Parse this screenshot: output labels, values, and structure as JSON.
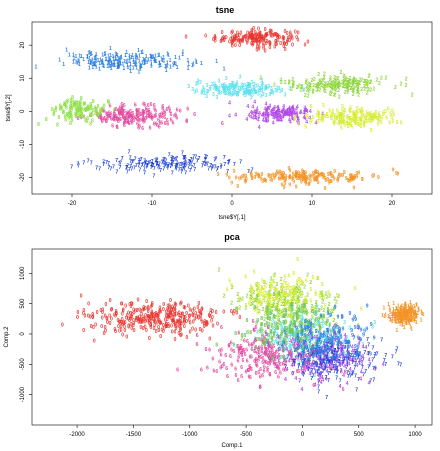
{
  "chart_data": [
    {
      "type": "scatter",
      "title": "tsne",
      "xlabel": "tsne$Y[,1]",
      "ylabel": "tsne$Y[,2]",
      "xlim": [
        -25,
        25
      ],
      "ylim": [
        -25,
        27
      ],
      "xticks": [
        -20,
        -10,
        0,
        10,
        20
      ],
      "yticks": [
        -20,
        -10,
        0,
        10,
        20
      ],
      "xtick_labels": [
        "-20",
        "-10",
        "0",
        "10",
        "20"
      ],
      "ytick_labels": [
        "-20",
        "-10",
        "0",
        "10",
        "20"
      ],
      "marker": "digit glyph of the class",
      "grid": false,
      "series": [
        {
          "glyph": "0",
          "color": "#e8342e",
          "center": [
            3,
            22
          ],
          "spread": [
            5,
            2.5
          ],
          "count": 190
        },
        {
          "glyph": "1",
          "color": "#2f7fe0",
          "center": [
            -13,
            15
          ],
          "spread": [
            8,
            2.6
          ],
          "count": 210
        },
        {
          "glyph": "2",
          "color": "#8ed63a",
          "center": [
            13,
            8
          ],
          "spread": [
            6.5,
            3
          ],
          "count": 190
        },
        {
          "glyph": "3",
          "color": "#5de0ee",
          "center": [
            1,
            6.5
          ],
          "spread": [
            6,
            2.4
          ],
          "count": 170
        },
        {
          "glyph": "4",
          "color": "#b248e8",
          "center": [
            6,
            -1
          ],
          "spread": [
            4,
            2.6
          ],
          "count": 160
        },
        {
          "glyph": "5",
          "color": "#d5ec30",
          "center": [
            15,
            -2
          ],
          "spread": [
            6,
            2.8
          ],
          "count": 170
        },
        {
          "glyph": "6",
          "color": "#e4489e",
          "center": [
            -12,
            -1.5
          ],
          "spread": [
            6,
            3.2
          ],
          "count": 190
        },
        {
          "glyph": "7",
          "color": "#1c3fd8",
          "center": [
            -8,
            -16
          ],
          "spread": [
            9,
            2.2
          ],
          "count": 180
        },
        {
          "glyph": "8",
          "color": "#8fe04a",
          "center": [
            -19,
            0
          ],
          "spread": [
            3.5,
            3.5
          ],
          "count": 120
        },
        {
          "glyph": "9",
          "color": "#f29426",
          "center": [
            9,
            -20
          ],
          "spread": [
            9,
            2.2
          ],
          "count": 190
        }
      ]
    },
    {
      "type": "scatter",
      "title": "pca",
      "xlabel": "Comp.1",
      "ylabel": "Comp.2",
      "xlim": [
        -2400,
        1150
      ],
      "ylim": [
        -1500,
        1400
      ],
      "xticks": [
        -2000,
        -1500,
        -1000,
        -500,
        0,
        500,
        1000
      ],
      "yticks": [
        -1000,
        -500,
        0,
        500,
        1000
      ],
      "xtick_labels": [
        "-2000",
        "-1500",
        "-1000",
        "-500",
        "0",
        "500",
        "1000"
      ],
      "ytick_labels": [
        "-1000",
        "-500",
        "0",
        "500",
        "1000"
      ],
      "marker": "digit glyph of the class",
      "grid": false,
      "series": [
        {
          "glyph": "0",
          "color": "#e8342e",
          "center": [
            -1300,
            250
          ],
          "spread": [
            600,
            260
          ],
          "count": 330
        },
        {
          "glyph": "1",
          "color": "#f29426",
          "center": [
            900,
            300
          ],
          "spread": [
            130,
            180
          ],
          "count": 230
        },
        {
          "glyph": "2",
          "color": "#8ed63a",
          "center": [
            -150,
            450
          ],
          "spread": [
            450,
            420
          ],
          "count": 230
        },
        {
          "glyph": "3",
          "color": "#5de0ee",
          "center": [
            0,
            -100
          ],
          "spread": [
            450,
            420
          ],
          "count": 230
        },
        {
          "glyph": "4",
          "color": "#b248e8",
          "center": [
            200,
            -400
          ],
          "spread": [
            420,
            400
          ],
          "count": 200
        },
        {
          "glyph": "5",
          "color": "#d5ec30",
          "center": [
            -200,
            650
          ],
          "spread": [
            400,
            350
          ],
          "count": 150
        },
        {
          "glyph": "6",
          "color": "#e4489e",
          "center": [
            -300,
            -350
          ],
          "spread": [
            500,
            420
          ],
          "count": 230
        },
        {
          "glyph": "7",
          "color": "#1c3fd8",
          "center": [
            300,
            -450
          ],
          "spread": [
            400,
            350
          ],
          "count": 200
        },
        {
          "glyph": "8",
          "color": "#6fc85a",
          "center": [
            -100,
            100
          ],
          "spread": [
            450,
            400
          ],
          "count": 170
        },
        {
          "glyph": "9",
          "color": "#2f7fe0",
          "center": [
            200,
            -100
          ],
          "spread": [
            400,
            400
          ],
          "count": 170
        }
      ]
    }
  ]
}
